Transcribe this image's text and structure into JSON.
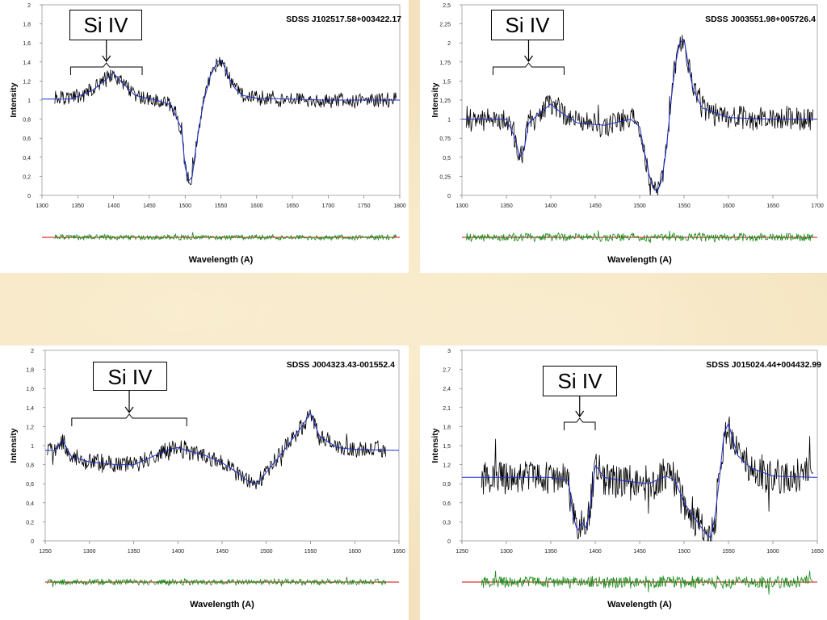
{
  "chart_data": [
    {
      "type": "line",
      "title": "SDSS J102517.58+003422.17",
      "xlabel": "Wavelength (A)",
      "ylabel": "Intensity",
      "annotation": "Si IV",
      "xlim": [
        1300,
        1800
      ],
      "ylim": [
        0,
        2
      ],
      "xticks": [
        "1300",
        "1350",
        "1400",
        "1450",
        "1500",
        "1550",
        "1600",
        "1650",
        "1700",
        "1750",
        "1800"
      ],
      "yticks": [
        "0",
        "0,2",
        "0,4",
        "0,6",
        "0,8",
        "1",
        "1,2",
        "1,4",
        "1,6",
        "1,8",
        "2"
      ],
      "bracket_range": [
        1340,
        1440
      ],
      "series": [
        {
          "role": "observed",
          "color": "#000000",
          "x_range": [
            1318,
            1795
          ],
          "noise": 0.06
        },
        {
          "role": "model",
          "color": "#1f2fd0",
          "x": [
            1300,
            1340,
            1370,
            1390,
            1400,
            1410,
            1430,
            1460,
            1480,
            1495,
            1500,
            1505,
            1510,
            1515,
            1525,
            1535,
            1545,
            1550,
            1555,
            1560,
            1570,
            1580,
            1600,
            1650,
            1700,
            1750,
            1800
          ],
          "y": [
            1.01,
            1.01,
            1.1,
            1.22,
            1.28,
            1.2,
            1.05,
            1.0,
            0.95,
            0.7,
            0.3,
            0.15,
            0.2,
            0.5,
            0.95,
            1.25,
            1.4,
            1.42,
            1.35,
            1.25,
            1.12,
            1.05,
            1.02,
            1.01,
            1.0,
            1.0,
            1.0
          ]
        }
      ],
      "residual": {
        "color": "#1a8a1a",
        "zero_line_color": "#d40000"
      }
    },
    {
      "type": "line",
      "title": "SDSS J003551.98+005726.4",
      "xlabel": "Wavelength (A)",
      "ylabel": "Intensity",
      "annotation": "Si IV",
      "xlim": [
        1300,
        1700
      ],
      "ylim": [
        0,
        2.5
      ],
      "xticks": [
        "1300",
        "1350",
        "1400",
        "1450",
        "1500",
        "1550",
        "1600",
        "1650",
        "1700"
      ],
      "yticks": [
        "0",
        "0,25",
        "0,5",
        "0,75",
        "1",
        "1,25",
        "1,5",
        "1,75",
        "2",
        "2,25",
        "2,5"
      ],
      "bracket_range": [
        1335,
        1415
      ],
      "series": [
        {
          "role": "observed",
          "color": "#000000",
          "x_range": [
            1305,
            1695
          ],
          "noise": 0.12
        },
        {
          "role": "model",
          "color": "#1f2fd0",
          "x": [
            1300,
            1350,
            1360,
            1365,
            1370,
            1375,
            1385,
            1400,
            1410,
            1430,
            1460,
            1490,
            1500,
            1505,
            1510,
            1515,
            1520,
            1525,
            1530,
            1535,
            1540,
            1545,
            1550,
            1555,
            1560,
            1570,
            1600,
            1650,
            1700
          ],
          "y": [
            1.0,
            1.0,
            0.75,
            0.5,
            0.6,
            0.95,
            1.05,
            1.2,
            1.1,
            0.95,
            0.92,
            1.0,
            0.9,
            0.6,
            0.3,
            0.1,
            0.05,
            0.2,
            0.6,
            1.2,
            1.7,
            2.0,
            2.05,
            1.7,
            1.4,
            1.15,
            1.02,
            1.0,
            1.0
          ]
        }
      ],
      "residual": {
        "color": "#1a8a1a",
        "zero_line_color": "#d40000"
      }
    },
    {
      "type": "line",
      "title": "SDSS J004323.43-001552.4",
      "xlabel": "Wavelength (A)",
      "ylabel": "Intensity",
      "annotation": "Si IV",
      "xlim": [
        1250,
        1650
      ],
      "ylim": [
        0,
        2
      ],
      "xticks": [
        "1250",
        "1300",
        "1350",
        "1400",
        "1450",
        "1500",
        "1550",
        "1600",
        "1650"
      ],
      "yticks": [
        "0",
        "0,2",
        "0,4",
        "0,6",
        "0,8",
        "1",
        "1,2",
        "1,4",
        "1,6",
        "1,8",
        "2"
      ],
      "bracket_range": [
        1280,
        1410
      ],
      "series": [
        {
          "role": "observed",
          "color": "#000000",
          "x_range": [
            1252,
            1635
          ],
          "noise": 0.07
        },
        {
          "role": "model",
          "color": "#1f2fd0",
          "x": [
            1250,
            1260,
            1270,
            1280,
            1300,
            1330,
            1350,
            1370,
            1390,
            1400,
            1410,
            1430,
            1450,
            1470,
            1480,
            1490,
            1500,
            1520,
            1540,
            1550,
            1560,
            1580,
            1600,
            1650
          ],
          "y": [
            0.95,
            0.95,
            1.05,
            0.88,
            0.83,
            0.8,
            0.8,
            0.88,
            0.96,
            0.98,
            0.95,
            0.9,
            0.82,
            0.7,
            0.62,
            0.6,
            0.72,
            0.95,
            1.2,
            1.34,
            1.1,
            0.98,
            0.96,
            0.95
          ]
        }
      ],
      "residual": {
        "color": "#1a8a1a",
        "zero_line_color": "#d40000"
      }
    },
    {
      "type": "line",
      "title": "SDSS J015024.44+004432.99",
      "xlabel": "Wavelength (A)",
      "ylabel": "Intensity",
      "annotation": "Si IV",
      "xlim": [
        1250,
        1650
      ],
      "ylim": [
        0,
        3
      ],
      "xticks": [
        "1250",
        "1300",
        "1350",
        "1400",
        "1450",
        "1500",
        "1550",
        "1600",
        "1650"
      ],
      "yticks": [
        "0",
        "0,3",
        "0,6",
        "0,9",
        "1,2",
        "1,5",
        "1,8",
        "2,1",
        "2,4",
        "2,7",
        "3"
      ],
      "bracket_range": [
        1365,
        1400
      ],
      "series": [
        {
          "role": "observed",
          "color": "#000000",
          "x_range": [
            1272,
            1645
          ],
          "noise": 0.22
        },
        {
          "role": "model",
          "color": "#1f2fd0",
          "x": [
            1250,
            1350,
            1370,
            1375,
            1380,
            1385,
            1390,
            1395,
            1400,
            1410,
            1430,
            1460,
            1480,
            1490,
            1500,
            1515,
            1525,
            1530,
            1535,
            1540,
            1545,
            1550,
            1555,
            1560,
            1575,
            1600,
            1650
          ],
          "y": [
            1.0,
            1.0,
            0.95,
            0.4,
            0.15,
            0.3,
            0.2,
            0.6,
            1.2,
            1.0,
            0.95,
            0.9,
            1.02,
            0.95,
            0.6,
            0.3,
            0.1,
            0.05,
            0.4,
            1.0,
            1.7,
            1.85,
            1.6,
            1.35,
            1.15,
            1.02,
            1.0
          ]
        }
      ],
      "residual": {
        "color": "#1a8a1a",
        "zero_line_color": "#d40000"
      }
    }
  ]
}
